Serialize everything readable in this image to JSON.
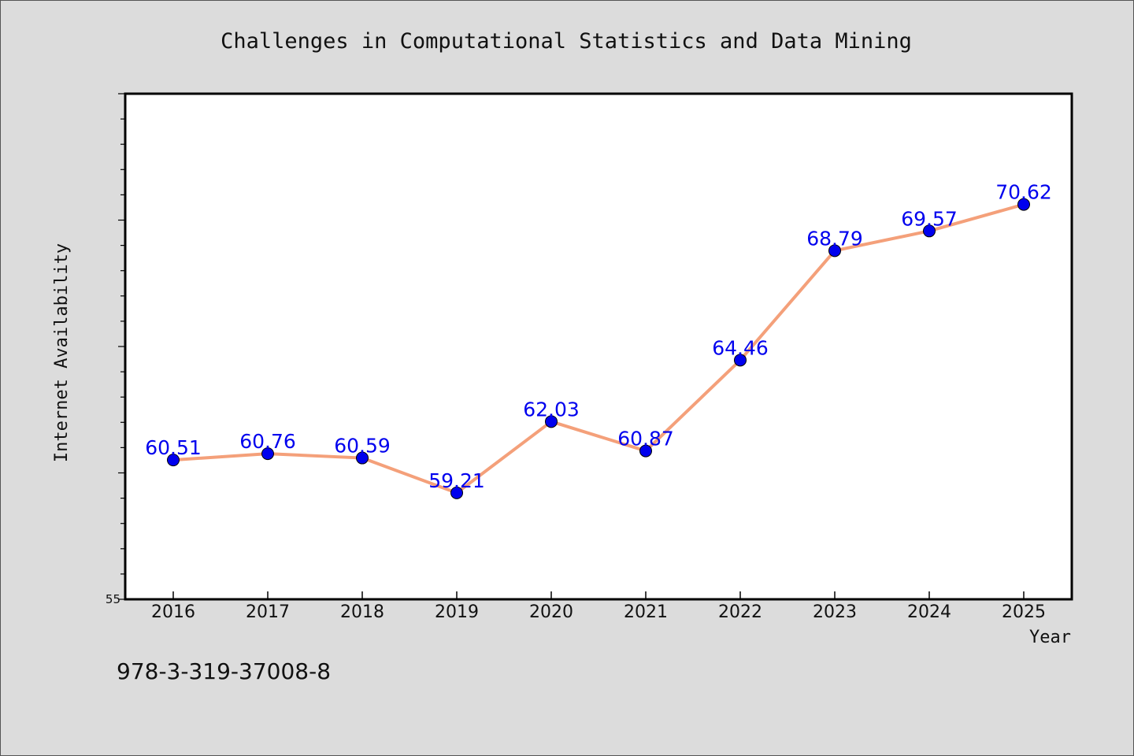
{
  "chart_data": {
    "type": "line",
    "title": "Challenges in Computational Statistics and Data Mining",
    "xlabel": "Year",
    "ylabel": "Internet Availability",
    "categories": [
      "2016",
      "2017",
      "2018",
      "2019",
      "2020",
      "2021",
      "2022",
      "2023",
      "2024",
      "2025"
    ],
    "series": [
      {
        "values": [
          60.51,
          60.76,
          60.59,
          59.21,
          62.03,
          60.87,
          64.46,
          68.79,
          69.57,
          70.62
        ]
      }
    ],
    "data_labels": [
      "60.51",
      "60.76",
      "60.59",
      "59.21",
      "62.03",
      "60.87",
      "64.46",
      "68.79",
      "69.57",
      "70.62"
    ],
    "ylim": [
      55,
      75
    ],
    "y_tick_labels": [
      "55"
    ],
    "grid": false,
    "legend": "none",
    "colors": {
      "line": "#f4a07a",
      "marker": "#0000ee",
      "label": "#0000ee",
      "background": "#dcdcdc",
      "plot_background": "#ffffff"
    }
  },
  "footer": {
    "text": "978-3-319-37008-8"
  }
}
